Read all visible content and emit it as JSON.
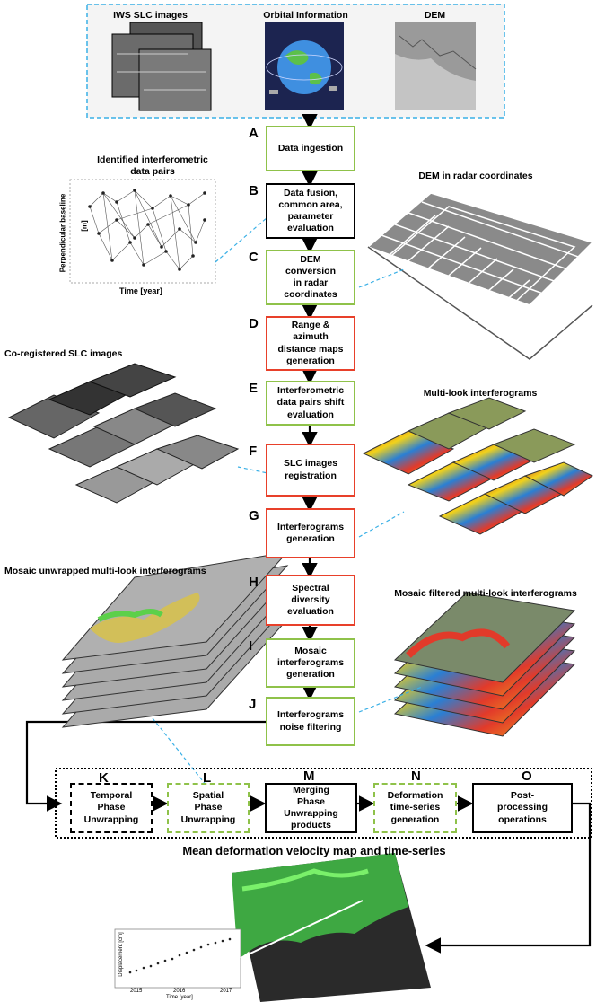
{
  "header": {
    "labels": [
      "IWS SLC images",
      "Orbital Information",
      "DEM"
    ]
  },
  "steps": [
    {
      "letter": "A",
      "label": "Data ingestion"
    },
    {
      "letter": "B",
      "label": "Data fusion,\ncommon area,\nparameter\nevaluation"
    },
    {
      "letter": "C",
      "label": "DEM\nconversion\nin radar\ncoordinates"
    },
    {
      "letter": "D",
      "label": "Range &\nazimuth\ndistance maps\ngeneration"
    },
    {
      "letter": "E",
      "label": "Interferometric\ndata pairs shift\nevaluation"
    },
    {
      "letter": "F",
      "label": "SLC images\nregistration"
    },
    {
      "letter": "G",
      "label": "Interferograms\ngeneration"
    },
    {
      "letter": "H",
      "label": "Spectral\ndiversity\nevaluation"
    },
    {
      "letter": "I",
      "label": "Mosaic\ninterferograms\ngeneration"
    },
    {
      "letter": "J",
      "label": "Interferograms\nnoise filtering"
    }
  ],
  "unwrap_steps": [
    {
      "letter": "K",
      "label": "Temporal\nPhase\nUnwrapping"
    },
    {
      "letter": "L",
      "label": "Spatial\nPhase\nUnwrapping"
    },
    {
      "letter": "M",
      "label": "Merging\nPhase\nUnwrapping\nproducts"
    },
    {
      "letter": "N",
      "label": "Deformation\ntime-series\ngeneration"
    },
    {
      "letter": "O",
      "label": "Post-\nprocessing\noperations"
    }
  ],
  "side_captions": {
    "pairs": "Identified interferometric\ndata pairs",
    "dem_radar": "DEM in radar coordinates",
    "coreg": "Co-registered SLC images",
    "multilook": "Multi-look interferograms",
    "mosaic_unwrapped": "Mosaic unwrapped multi-look interferograms",
    "mosaic_filtered": "Mosaic filtered multi-look interferograms"
  },
  "baseline_plot": {
    "ylabel": "Perpendicular baseline",
    "yunit": "[m]",
    "xlabel": "Time [year]"
  },
  "result": {
    "title": "Mean deformation velocity map and time-series",
    "ts_ylabel": "Displacement [cm]",
    "ts_xlabel": "Time [year]",
    "ts_ticks": [
      "2015",
      "2016",
      "2017"
    ]
  },
  "colors": {
    "green": "#8fc24a",
    "red": "#e8402a",
    "dashed_blue": "#3ab0e6"
  }
}
